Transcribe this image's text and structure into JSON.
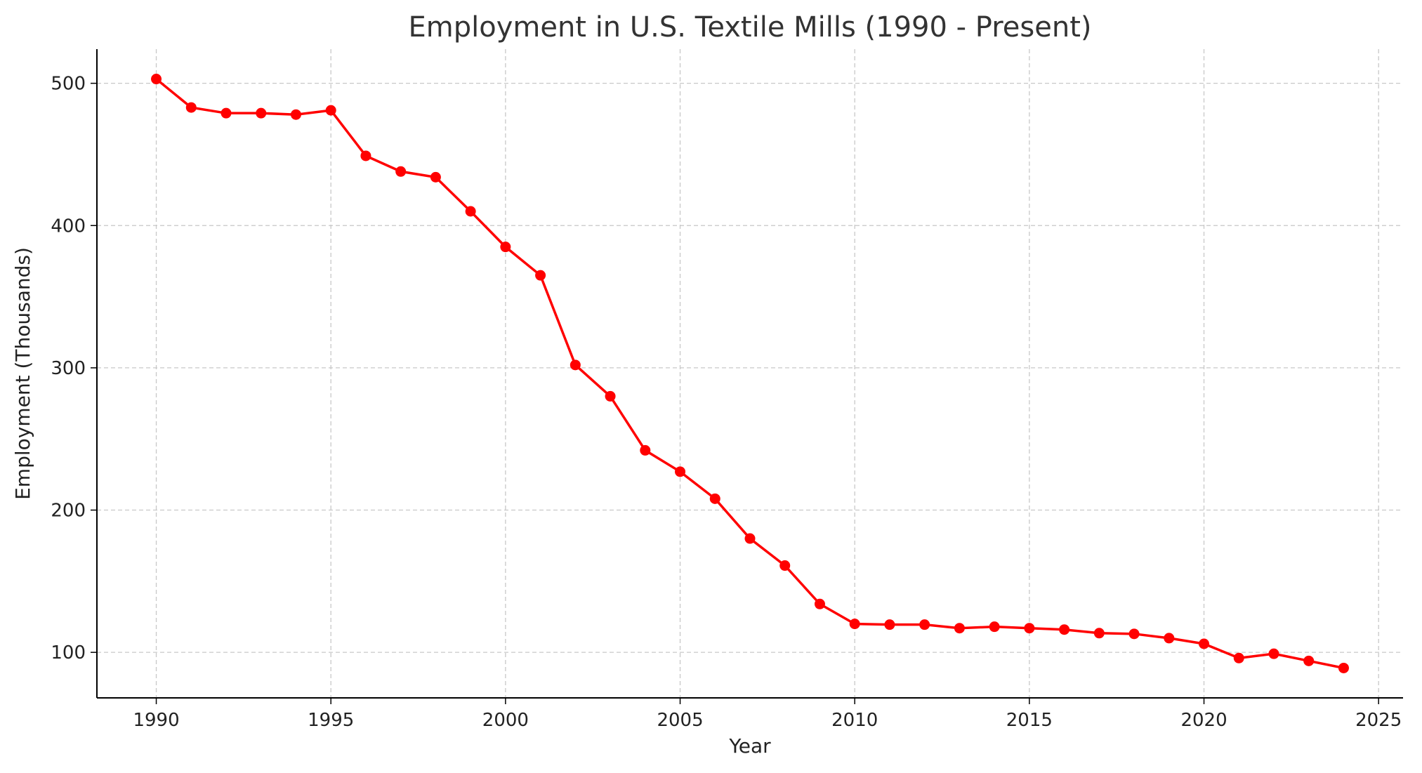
{
  "chart_data": {
    "type": "line",
    "title": "Employment in U.S. Textile Mills (1990 - Present)",
    "xlabel": "Year",
    "ylabel": "Employment (Thousands)",
    "xlim": [
      1988.3,
      2025.7
    ],
    "ylim": [
      68,
      524
    ],
    "xticks": [
      1990,
      1995,
      2000,
      2005,
      2010,
      2015,
      2020,
      2025
    ],
    "yticks": [
      100,
      200,
      300,
      400,
      500
    ],
    "grid": true,
    "color": "#ff0000",
    "marker": "circle",
    "x": [
      1990,
      1991,
      1992,
      1993,
      1994,
      1995,
      1996,
      1997,
      1998,
      1999,
      2000,
      2001,
      2002,
      2003,
      2004,
      2005,
      2006,
      2007,
      2008,
      2009,
      2010,
      2011,
      2012,
      2013,
      2014,
      2015,
      2016,
      2017,
      2018,
      2019,
      2020,
      2021,
      2022,
      2023,
      2024
    ],
    "y": [
      503,
      483,
      479,
      479,
      478,
      481,
      449,
      438,
      434,
      410,
      385,
      365,
      302,
      280,
      242,
      227,
      208,
      180,
      161,
      134,
      120,
      119.5,
      119.5,
      117,
      118,
      117,
      116,
      113.5,
      113,
      110,
      106,
      96,
      99,
      94,
      89
    ]
  }
}
